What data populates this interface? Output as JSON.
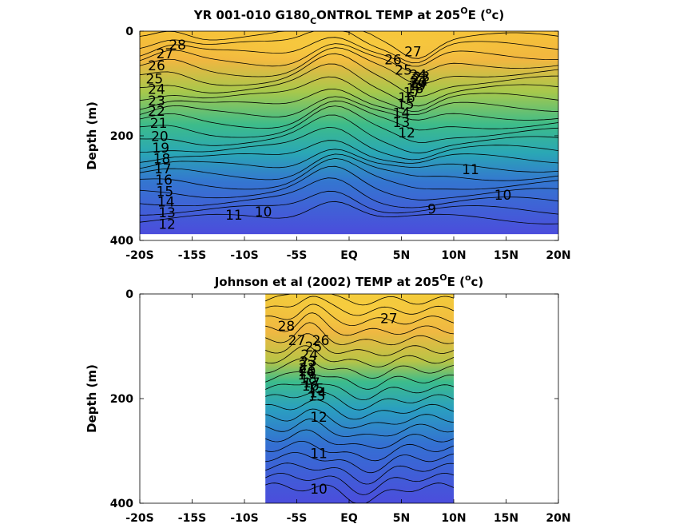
{
  "colors": {
    "warm": "#f6c038",
    "mid": "#34b895",
    "cool": "#4450dc",
    "contour": "#000000"
  },
  "chart_data": [
    {
      "type": "contour",
      "title": "YR 001-010 G180_CONTROL TEMP at 205°E (°c)",
      "title_parts": {
        "main": "YR 001-010 G180",
        "sub": "C",
        "rest": "ONTROL TEMP at 205",
        "deg1": "O",
        "mid": "E (",
        "deg2": "o",
        "end": "c)"
      },
      "ylabel": "Depth (m)",
      "x_ticks": [
        "-20S",
        "-15S",
        "-10S",
        "-5S",
        "EQ",
        "5N",
        "10N",
        "15N",
        "20N"
      ],
      "x_tick_values": [
        -20,
        -15,
        -10,
        -5,
        0,
        5,
        10,
        15,
        20
      ],
      "y_ticks": [
        "0",
        "200",
        "400"
      ],
      "y_tick_values": [
        0,
        200,
        400
      ],
      "xlim": [
        -20,
        20
      ],
      "ylim": [
        0,
        400
      ],
      "y_reversed": true,
      "data_extent": {
        "x": [
          -20,
          20
        ],
        "y": [
          0,
          388
        ]
      },
      "contour_labels": [
        {
          "text": "28",
          "x": -16.4,
          "y": 35
        },
        {
          "text": "27",
          "x": -17.6,
          "y": 52
        },
        {
          "text": "26",
          "x": -18.4,
          "y": 75
        },
        {
          "text": "25",
          "x": -18.6,
          "y": 100
        },
        {
          "text": "24",
          "x": -18.4,
          "y": 120
        },
        {
          "text": "23",
          "x": -18.4,
          "y": 142
        },
        {
          "text": "22",
          "x": -18.4,
          "y": 162
        },
        {
          "text": "21",
          "x": -18.2,
          "y": 185
        },
        {
          "text": "20",
          "x": -18.1,
          "y": 210
        },
        {
          "text": "19",
          "x": -18.0,
          "y": 232
        },
        {
          "text": "18",
          "x": -17.9,
          "y": 253
        },
        {
          "text": "17",
          "x": -17.8,
          "y": 272
        },
        {
          "text": "16",
          "x": -17.7,
          "y": 293
        },
        {
          "text": "15",
          "x": -17.6,
          "y": 315
        },
        {
          "text": "14",
          "x": -17.5,
          "y": 335
        },
        {
          "text": "13",
          "x": -17.4,
          "y": 356
        },
        {
          "text": "12",
          "x": -17.4,
          "y": 378
        },
        {
          "text": "11",
          "x": -11.0,
          "y": 360
        },
        {
          "text": "10",
          "x": -8.2,
          "y": 354
        },
        {
          "text": "9",
          "x": 7.9,
          "y": 349
        },
        {
          "text": "10",
          "x": 14.7,
          "y": 322
        },
        {
          "text": "11",
          "x": 11.6,
          "y": 273
        },
        {
          "text": "12",
          "x": 5.5,
          "y": 203
        },
        {
          "text": "13",
          "x": 5.0,
          "y": 183
        },
        {
          "text": "14",
          "x": 5.0,
          "y": 166
        },
        {
          "text": "15",
          "x": 5.4,
          "y": 148
        },
        {
          "text": "16",
          "x": 5.5,
          "y": 136
        },
        {
          "text": "17",
          "x": 6.0,
          "y": 126
        },
        {
          "text": "18",
          "x": 6.3,
          "y": 118
        },
        {
          "text": "19",
          "x": 6.5,
          "y": 113
        },
        {
          "text": "20",
          "x": 6.6,
          "y": 108
        },
        {
          "text": "21",
          "x": 6.7,
          "y": 104
        },
        {
          "text": "22",
          "x": 6.8,
          "y": 100
        },
        {
          "text": "23",
          "x": 6.9,
          "y": 96
        },
        {
          "text": "24",
          "x": 6.6,
          "y": 92
        },
        {
          "text": "25",
          "x": 5.2,
          "y": 83
        },
        {
          "text": "26",
          "x": 4.2,
          "y": 63
        },
        {
          "text": "27",
          "x": 6.1,
          "y": 48
        }
      ]
    },
    {
      "type": "contour",
      "title": "Johnson et al (2002) TEMP at 205°E (°c)",
      "title_parts": {
        "main": "Johnson et al (2002) TEMP at 205",
        "deg1": "O",
        "mid": "E (",
        "deg2": "o",
        "end": "c)"
      },
      "ylabel": "Depth (m)",
      "x_ticks": [
        "-20S",
        "-15S",
        "-10S",
        "-5S",
        "EQ",
        "5N",
        "10N",
        "15N",
        "20N"
      ],
      "x_tick_values": [
        -20,
        -15,
        -10,
        -5,
        0,
        5,
        10,
        15,
        20
      ],
      "y_ticks": [
        "0",
        "200",
        "400"
      ],
      "y_tick_values": [
        0,
        200,
        400
      ],
      "xlim": [
        -20,
        20
      ],
      "ylim": [
        0,
        400
      ],
      "y_reversed": true,
      "data_extent": {
        "x": [
          -8,
          10
        ],
        "y": [
          0,
          400
        ]
      },
      "contour_labels": [
        {
          "text": "28",
          "x": -6.0,
          "y": 70
        },
        {
          "text": "27",
          "x": -5.0,
          "y": 98
        },
        {
          "text": "26",
          "x": -2.7,
          "y": 98
        },
        {
          "text": "25",
          "x": -3.4,
          "y": 110
        },
        {
          "text": "24",
          "x": -3.8,
          "y": 125
        },
        {
          "text": "23",
          "x": -3.9,
          "y": 138
        },
        {
          "text": "22",
          "x": -4.0,
          "y": 145
        },
        {
          "text": "21",
          "x": -4.0,
          "y": 151
        },
        {
          "text": "20",
          "x": -4.0,
          "y": 157
        },
        {
          "text": "19",
          "x": -4.1,
          "y": 163
        },
        {
          "text": "18",
          "x": -3.9,
          "y": 171
        },
        {
          "text": "17",
          "x": -3.6,
          "y": 179
        },
        {
          "text": "16",
          "x": -3.7,
          "y": 185
        },
        {
          "text": "15",
          "x": -3.2,
          "y": 190
        },
        {
          "text": "14",
          "x": -3.0,
          "y": 198
        },
        {
          "text": "13",
          "x": -3.1,
          "y": 204
        },
        {
          "text": "12",
          "x": -2.9,
          "y": 244
        },
        {
          "text": "11",
          "x": -2.9,
          "y": 314
        },
        {
          "text": "10",
          "x": -2.9,
          "y": 382
        },
        {
          "text": "27",
          "x": 3.8,
          "y": 56
        }
      ]
    }
  ]
}
